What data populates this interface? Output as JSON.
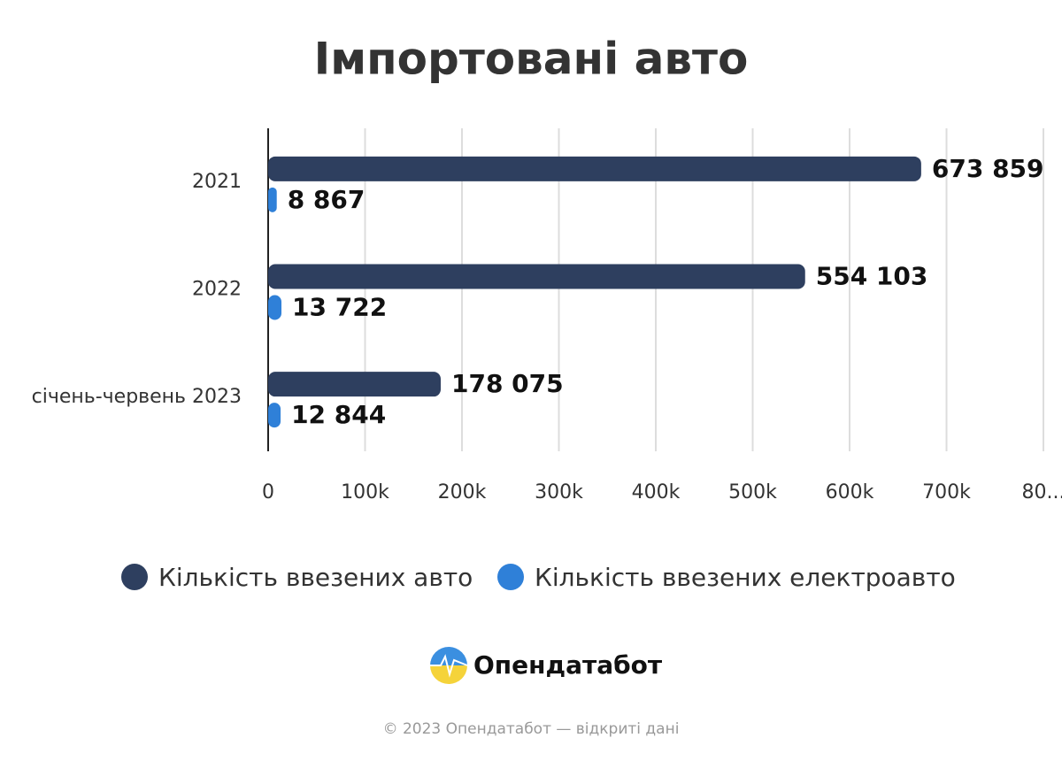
{
  "chart_data": {
    "type": "bar",
    "orientation": "horizontal",
    "title": "Імпортовані авто",
    "categories": [
      "2021",
      "2022",
      "січень-червень 2023"
    ],
    "series": [
      {
        "name": "Кількість ввезених авто",
        "color": "#2e3f5f",
        "values": [
          673859,
          554103,
          178075
        ],
        "value_labels": [
          "673 859",
          "554 103",
          "178 075"
        ]
      },
      {
        "name": "Кількість ввезених електроавто",
        "color": "#2f80d8",
        "values": [
          8867,
          13722,
          12844
        ],
        "value_labels": [
          "8 867",
          "13 722",
          "12 844"
        ]
      }
    ],
    "xlim": [
      0,
      800000
    ],
    "xticks": [
      0,
      {
        "value": 100000,
        "label": "100k"
      },
      {
        "value": 200000,
        "label": "200k"
      },
      {
        "value": 300000,
        "label": "300k"
      },
      {
        "value": 400000,
        "label": "400k"
      },
      {
        "value": 500000,
        "label": "500k"
      },
      {
        "value": 600000,
        "label": "600k"
      },
      {
        "value": 700000,
        "label": "700k"
      },
      {
        "value": 800000,
        "label": "80..."
      }
    ],
    "grid": true,
    "legend": "bottom"
  },
  "logo": "Опендатабот",
  "footer": "© 2023 Опендатабот — відкриті дані"
}
